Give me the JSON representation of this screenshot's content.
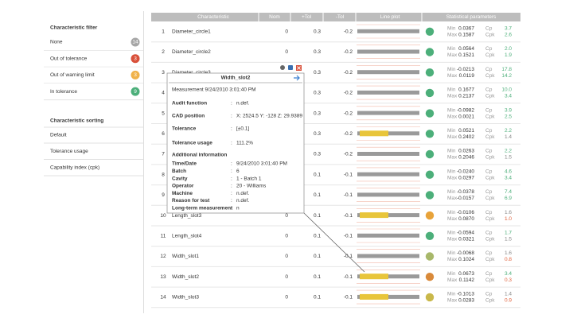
{
  "filter": {
    "title": "Characteristic filter",
    "items": [
      {
        "label": "None",
        "count": "14",
        "color": "#a6a6a6"
      },
      {
        "label": "Out of tolerance",
        "count": "3",
        "color": "#d9503a"
      },
      {
        "label": "Out of warning limit",
        "count": "3",
        "color": "#f0b24a"
      },
      {
        "label": "In tolerance",
        "count": "9",
        "color": "#4caf7a"
      }
    ]
  },
  "sorting": {
    "title": "Characteristic sorting",
    "items": [
      "Default",
      "Tolerance usage",
      "Capability index (cpk)"
    ]
  },
  "table": {
    "headers": [
      "Characteristic",
      "Nom",
      "+Tol",
      "-Tol",
      "Line plot",
      "Statistical parameters"
    ],
    "stat_labels": [
      "Min",
      "Max",
      "Cp",
      "Cpk"
    ],
    "rows": [
      {
        "index": "1",
        "name": "Diameter_circle1",
        "nom": "0",
        "plus_tol": "0.3",
        "minus_tol": "-0.2",
        "min": "0.0367",
        "max": "0.1587",
        "cp": "3.7",
        "cpk": "2.6",
        "status": "#4caf7a",
        "plot_color": "#9a9a9a"
      },
      {
        "index": "2",
        "name": "Diameter_circle2",
        "nom": "0",
        "plus_tol": "0.3",
        "minus_tol": "-0.2",
        "min": "0.0564",
        "max": "0.1521",
        "cp": "2.0",
        "cpk": "1.9",
        "status": "#4caf7a",
        "plot_color": "#9a9a9a"
      },
      {
        "index": "3",
        "name": "Diameter_circle3",
        "nom": null,
        "plus_tol": "0.3",
        "minus_tol": "-0.2",
        "min": "-0.0213",
        "max": "0.0119",
        "cp": "17.8",
        "cpk": "14.2",
        "status": "#4caf7a",
        "plot_color": "#9a9a9a"
      },
      {
        "index": "4",
        "name": null,
        "nom": null,
        "plus_tol": "0.3",
        "minus_tol": "-0.2",
        "min": "0.1677",
        "max": "0.2137",
        "cp": "10.0",
        "cpk": "3.4",
        "status": "#4caf7a",
        "plot_color": "#9a9a9a"
      },
      {
        "index": "5",
        "name": null,
        "nom": null,
        "plus_tol": "0.3",
        "minus_tol": "-0.2",
        "min": "-0.0982",
        "max": "0.0021",
        "cp": "3.9",
        "cpk": "2.5",
        "status": "#4caf7a",
        "plot_color": "#9a9a9a"
      },
      {
        "index": "6",
        "name": null,
        "nom": null,
        "plus_tol": "0.3",
        "minus_tol": "-0.2",
        "min": "0.0521",
        "max": "0.2402",
        "cp": "2.2",
        "cpk": "1.4",
        "status": "#4caf7a",
        "plot_color": "#e8c53a"
      },
      {
        "index": "7",
        "name": null,
        "nom": null,
        "plus_tol": "0.3",
        "minus_tol": "-0.2",
        "min": "0.0263",
        "max": "0.2046",
        "cp": "2.2",
        "cpk": "1.5",
        "status": "#4caf7a",
        "plot_color": "#9a9a9a"
      },
      {
        "index": "8",
        "name": null,
        "nom": null,
        "plus_tol": "0.1",
        "minus_tol": "-0.1",
        "min": "-0.0240",
        "max": "0.0297",
        "cp": "4.6",
        "cpk": "3.4",
        "status": "#4caf7a",
        "plot_color": "#9a9a9a"
      },
      {
        "index": "9",
        "name": null,
        "nom": null,
        "plus_tol": "0.1",
        "minus_tol": "-0.1",
        "min": "-0.0378",
        "max": "-0.0157",
        "cp": "7.4",
        "cpk": "6.9",
        "status": "#4caf7a",
        "plot_color": "#9a9a9a"
      },
      {
        "index": "10",
        "name": "Length_slot3",
        "nom": "0",
        "plus_tol": "0.1",
        "minus_tol": "-0.1",
        "min": "-0.0106",
        "max": "0.0870",
        "cp": "1.6",
        "cpk": "1.0",
        "status": "#e8a33a",
        "plot_color": "#e8c53a"
      },
      {
        "index": "11",
        "name": "Length_slot4",
        "nom": "0",
        "plus_tol": "0.1",
        "minus_tol": "-0.1",
        "min": "-0.0594",
        "max": "0.0321",
        "cp": "1.7",
        "cpk": "1.5",
        "status": "#4caf7a",
        "plot_color": "#9a9a9a"
      },
      {
        "index": "12",
        "name": "Width_slot1",
        "nom": "0",
        "plus_tol": "0.1",
        "minus_tol": "-0.1",
        "min": "-0.0068",
        "max": "0.1024",
        "cp": "1.6",
        "cpk": "0.8",
        "status": "#a8b86a",
        "plot_color": "#9a9a9a"
      },
      {
        "index": "13",
        "name": "Width_slot2",
        "nom": "0",
        "plus_tol": "0.1",
        "minus_tol": "-0.1",
        "min": "0.0673",
        "max": "0.1142",
        "cp": "3.4",
        "cpk": "0.3",
        "status": "#d98a3a",
        "plot_color": "#e8c53a"
      },
      {
        "index": "14",
        "name": "Width_slot3",
        "nom": "0",
        "plus_tol": "0.1",
        "minus_tol": "-0.1",
        "min": "-0.1013",
        "max": "0.0283",
        "cp": "1.4",
        "cpk": "0.9",
        "status": "#c9b84a",
        "plot_color": "#e8c53a"
      }
    ]
  },
  "popup": {
    "title": "Width_slot2",
    "measurement": "Measurement 9/24/2010 3:01:40 PM",
    "separator": ":",
    "fields": [
      {
        "label": "Audit function",
        "value": "n.def."
      },
      {
        "label": "CAD position",
        "value": "X: 2524.5  Y: -128  Z: 29.9389"
      },
      {
        "label": "Tolerance",
        "value": "[±0.1]"
      },
      {
        "label": "Tolerance usage",
        "value": "111.2%"
      }
    ],
    "additional_title": "Additional information",
    "additional": [
      {
        "label": "Time/Date",
        "value": "9/24/2010 3:01:40 PM"
      },
      {
        "label": "Batch",
        "value": "6"
      },
      {
        "label": "Cavity",
        "value": "1 - Batch 1"
      },
      {
        "label": "Operator",
        "value": "20 - Williams"
      },
      {
        "label": "Machine",
        "value": "n.def."
      },
      {
        "label": "Reason for test",
        "value": "n.def."
      },
      {
        "label": "Long-term measurement",
        "value": "n"
      }
    ]
  }
}
